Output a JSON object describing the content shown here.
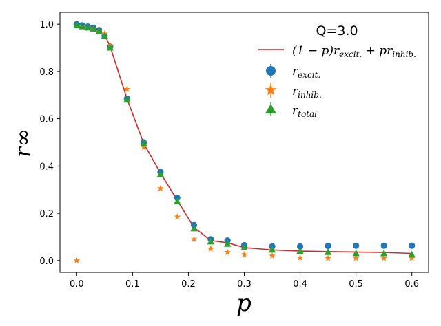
{
  "chart_data": {
    "type": "scatter",
    "title": "Q=3.0",
    "xlabel": "p",
    "ylabel": "r∞",
    "xlim": [
      -0.03,
      0.63
    ],
    "ylim": [
      -0.05,
      1.05
    ],
    "xticks": [
      0.0,
      0.1,
      0.2,
      0.3,
      0.4,
      0.5,
      0.6
    ],
    "xtick_labels": [
      "0.0",
      "0.1",
      "0.2",
      "0.3",
      "0.4",
      "0.5",
      "0.6"
    ],
    "yticks": [
      0.0,
      0.2,
      0.4,
      0.6,
      0.8,
      1.0
    ],
    "ytick_labels": [
      "0.0",
      "0.2",
      "0.4",
      "0.6",
      "0.8",
      "1.0"
    ],
    "grid": false,
    "legend_position": "top-right",
    "x": [
      0.0,
      0.01,
      0.02,
      0.03,
      0.04,
      0.05,
      0.06,
      0.09,
      0.12,
      0.15,
      0.18,
      0.21,
      0.24,
      0.27,
      0.3,
      0.35,
      0.4,
      0.45,
      0.5,
      0.55,
      0.6
    ],
    "series": [
      {
        "name": "(1 − p)r_excit. + pr_inhib.",
        "kind": "line",
        "color": "#d62728",
        "values": [
          1.0,
          0.99,
          0.985,
          0.98,
          0.97,
          0.955,
          0.905,
          0.685,
          0.495,
          0.37,
          0.255,
          0.14,
          0.085,
          0.075,
          0.055,
          0.045,
          0.04,
          0.038,
          0.036,
          0.034,
          0.03
        ]
      },
      {
        "name": "r_excit.",
        "kind": "scatter",
        "marker": "circle",
        "color": "#1f77b4",
        "values": [
          1.0,
          0.995,
          0.99,
          0.985,
          0.975,
          0.95,
          0.905,
          0.685,
          0.5,
          0.375,
          0.265,
          0.15,
          0.09,
          0.085,
          0.065,
          0.06,
          0.06,
          0.062,
          0.063,
          0.063,
          0.063
        ]
      },
      {
        "name": "r_inhib.",
        "kind": "scatter",
        "marker": "star",
        "color": "#ff7f0e",
        "values": [
          0.0,
          0.99,
          0.985,
          0.98,
          0.97,
          0.96,
          0.91,
          0.725,
          0.48,
          0.305,
          0.185,
          0.09,
          0.05,
          0.035,
          0.025,
          0.02,
          0.012,
          0.01,
          0.01,
          0.01,
          0.01
        ]
      },
      {
        "name": "r_total",
        "kind": "scatter",
        "marker": "triangle",
        "color": "#2ca02c",
        "values": [
          0.995,
          0.99,
          0.985,
          0.98,
          0.97,
          0.95,
          0.9,
          0.68,
          0.495,
          0.365,
          0.25,
          0.135,
          0.08,
          0.07,
          0.055,
          0.045,
          0.04,
          0.035,
          0.03,
          0.03,
          0.025
        ]
      }
    ],
    "legend": [
      {
        "base": "(1 − p)r",
        "sub": "excit.",
        "mid": " + pr",
        "sub2": "inhib."
      },
      {
        "base": "r",
        "sub": "excit."
      },
      {
        "base": "r",
        "sub": "inhib."
      },
      {
        "base": "r",
        "sub": "total"
      }
    ]
  }
}
